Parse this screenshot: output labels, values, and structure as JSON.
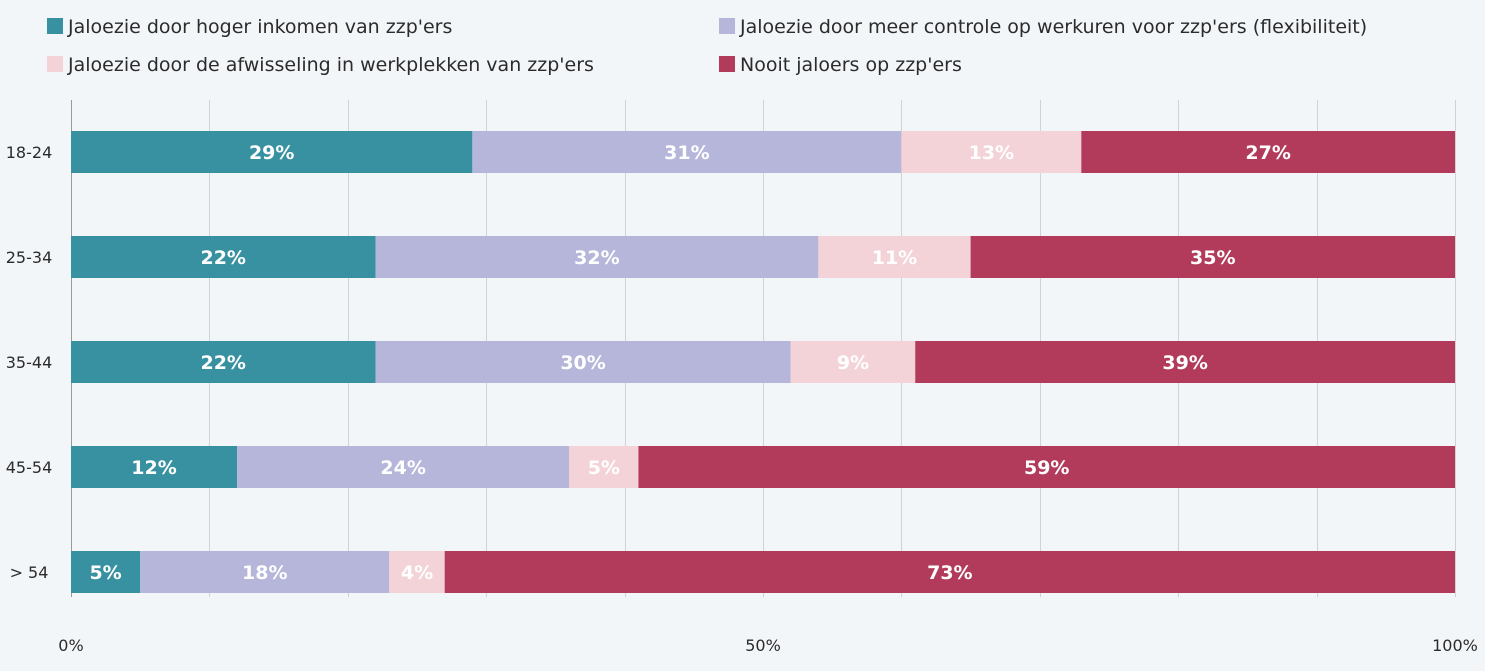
{
  "chart_data": {
    "type": "bar",
    "orientation": "horizontal",
    "stacked": "percent",
    "title": "",
    "xlabel": "",
    "ylabel": "",
    "xlim": [
      0,
      100
    ],
    "grid": true,
    "legend_position": "top",
    "x_ticks": [
      "0%",
      "50%",
      "100%"
    ],
    "categories": [
      "18-24",
      "25-34",
      "35-44",
      "45-54",
      "> 54"
    ],
    "series": [
      {
        "name": "Jaloezie door hoger inkomen van zzp'ers",
        "color": "#3891a0",
        "values": [
          29,
          22,
          22,
          12,
          5
        ]
      },
      {
        "name": "Jaloezie door meer controle op werkuren voor zzp'ers (flexibiliteit)",
        "color": "#b5b6da",
        "values": [
          31,
          32,
          30,
          24,
          18
        ]
      },
      {
        "name": "Jaloezie door de afwisseling in werkplekken van zzp'ers",
        "color": "#f3d3d7",
        "values": [
          13,
          11,
          9,
          5,
          4
        ]
      },
      {
        "name": "Nooit jaloers op zzp'ers",
        "color": "#b23b5c",
        "values": [
          27,
          35,
          39,
          59,
          73
        ]
      }
    ],
    "value_suffix": "%"
  }
}
